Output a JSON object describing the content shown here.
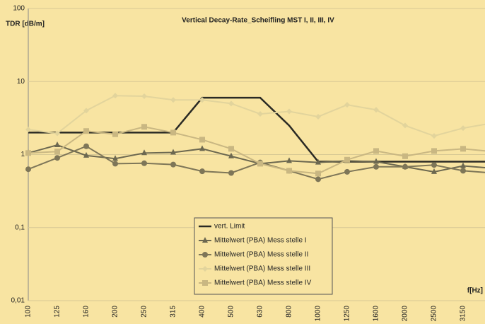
{
  "chart_data": {
    "type": "line",
    "title": "Vertical Decay-Rate_Scheifling MST I, II, III, IV",
    "y_label": "TDR [dB/m]",
    "x_label": "f[Hz]",
    "categories": [
      "100",
      "125",
      "160",
      "200",
      "250",
      "315",
      "400",
      "500",
      "630",
      "800",
      "1000",
      "1250",
      "1600",
      "2000",
      "2500",
      "3150",
      null
    ],
    "y_log": true,
    "ylim": [
      0.01,
      100
    ],
    "yticks": [
      {
        "value": 0.01,
        "label": "0,01"
      },
      {
        "value": 0.1,
        "label": "0,1"
      },
      1,
      10,
      100
    ],
    "grid": true,
    "legend": "bottom-center",
    "series": [
      {
        "name": "vert. Limit",
        "color": "#2a2a24",
        "marker": "none",
        "values": [
          2,
          2,
          2,
          2,
          2,
          2,
          6,
          6,
          6,
          2.5,
          0.8,
          0.8,
          0.8,
          0.8,
          0.8,
          0.8,
          0.8
        ]
      },
      {
        "name": "Mittelwert (PBA) Mess stelle I",
        "color": "#6c6850",
        "marker": "triangle",
        "values": [
          1.05,
          1.35,
          0.97,
          0.88,
          1.05,
          1.07,
          1.2,
          0.95,
          0.75,
          0.82,
          0.78,
          0.82,
          0.8,
          0.68,
          0.58,
          0.7,
          0.65
        ]
      },
      {
        "name": "Mittelwert (PBA) Mess stelle II",
        "color": "#7e7658",
        "marker": "circle",
        "values": [
          0.63,
          0.9,
          1.3,
          0.75,
          0.76,
          0.73,
          0.59,
          0.56,
          0.78,
          0.6,
          0.46,
          0.58,
          0.68,
          0.68,
          0.72,
          0.6,
          0.56
        ]
      },
      {
        "name": "Mittelwert (PBA) Mess stelle III",
        "color": "#e2d49c",
        "marker": "diamond",
        "values": [
          2.2,
          1.95,
          4,
          6.4,
          6.3,
          5.6,
          5.6,
          5,
          3.6,
          3.9,
          3.3,
          4.8,
          4.1,
          2.5,
          1.8,
          2.3,
          2.7
        ]
      },
      {
        "name": "Mittelwert (PBA) Mess stelle IV",
        "color": "#c9b782",
        "marker": "square",
        "values": [
          1.05,
          1.1,
          2.1,
          1.9,
          2.4,
          2,
          1.6,
          1.2,
          0.75,
          0.6,
          0.55,
          0.85,
          1.12,
          0.95,
          1.12,
          1.2,
          1.1
        ]
      }
    ]
  }
}
